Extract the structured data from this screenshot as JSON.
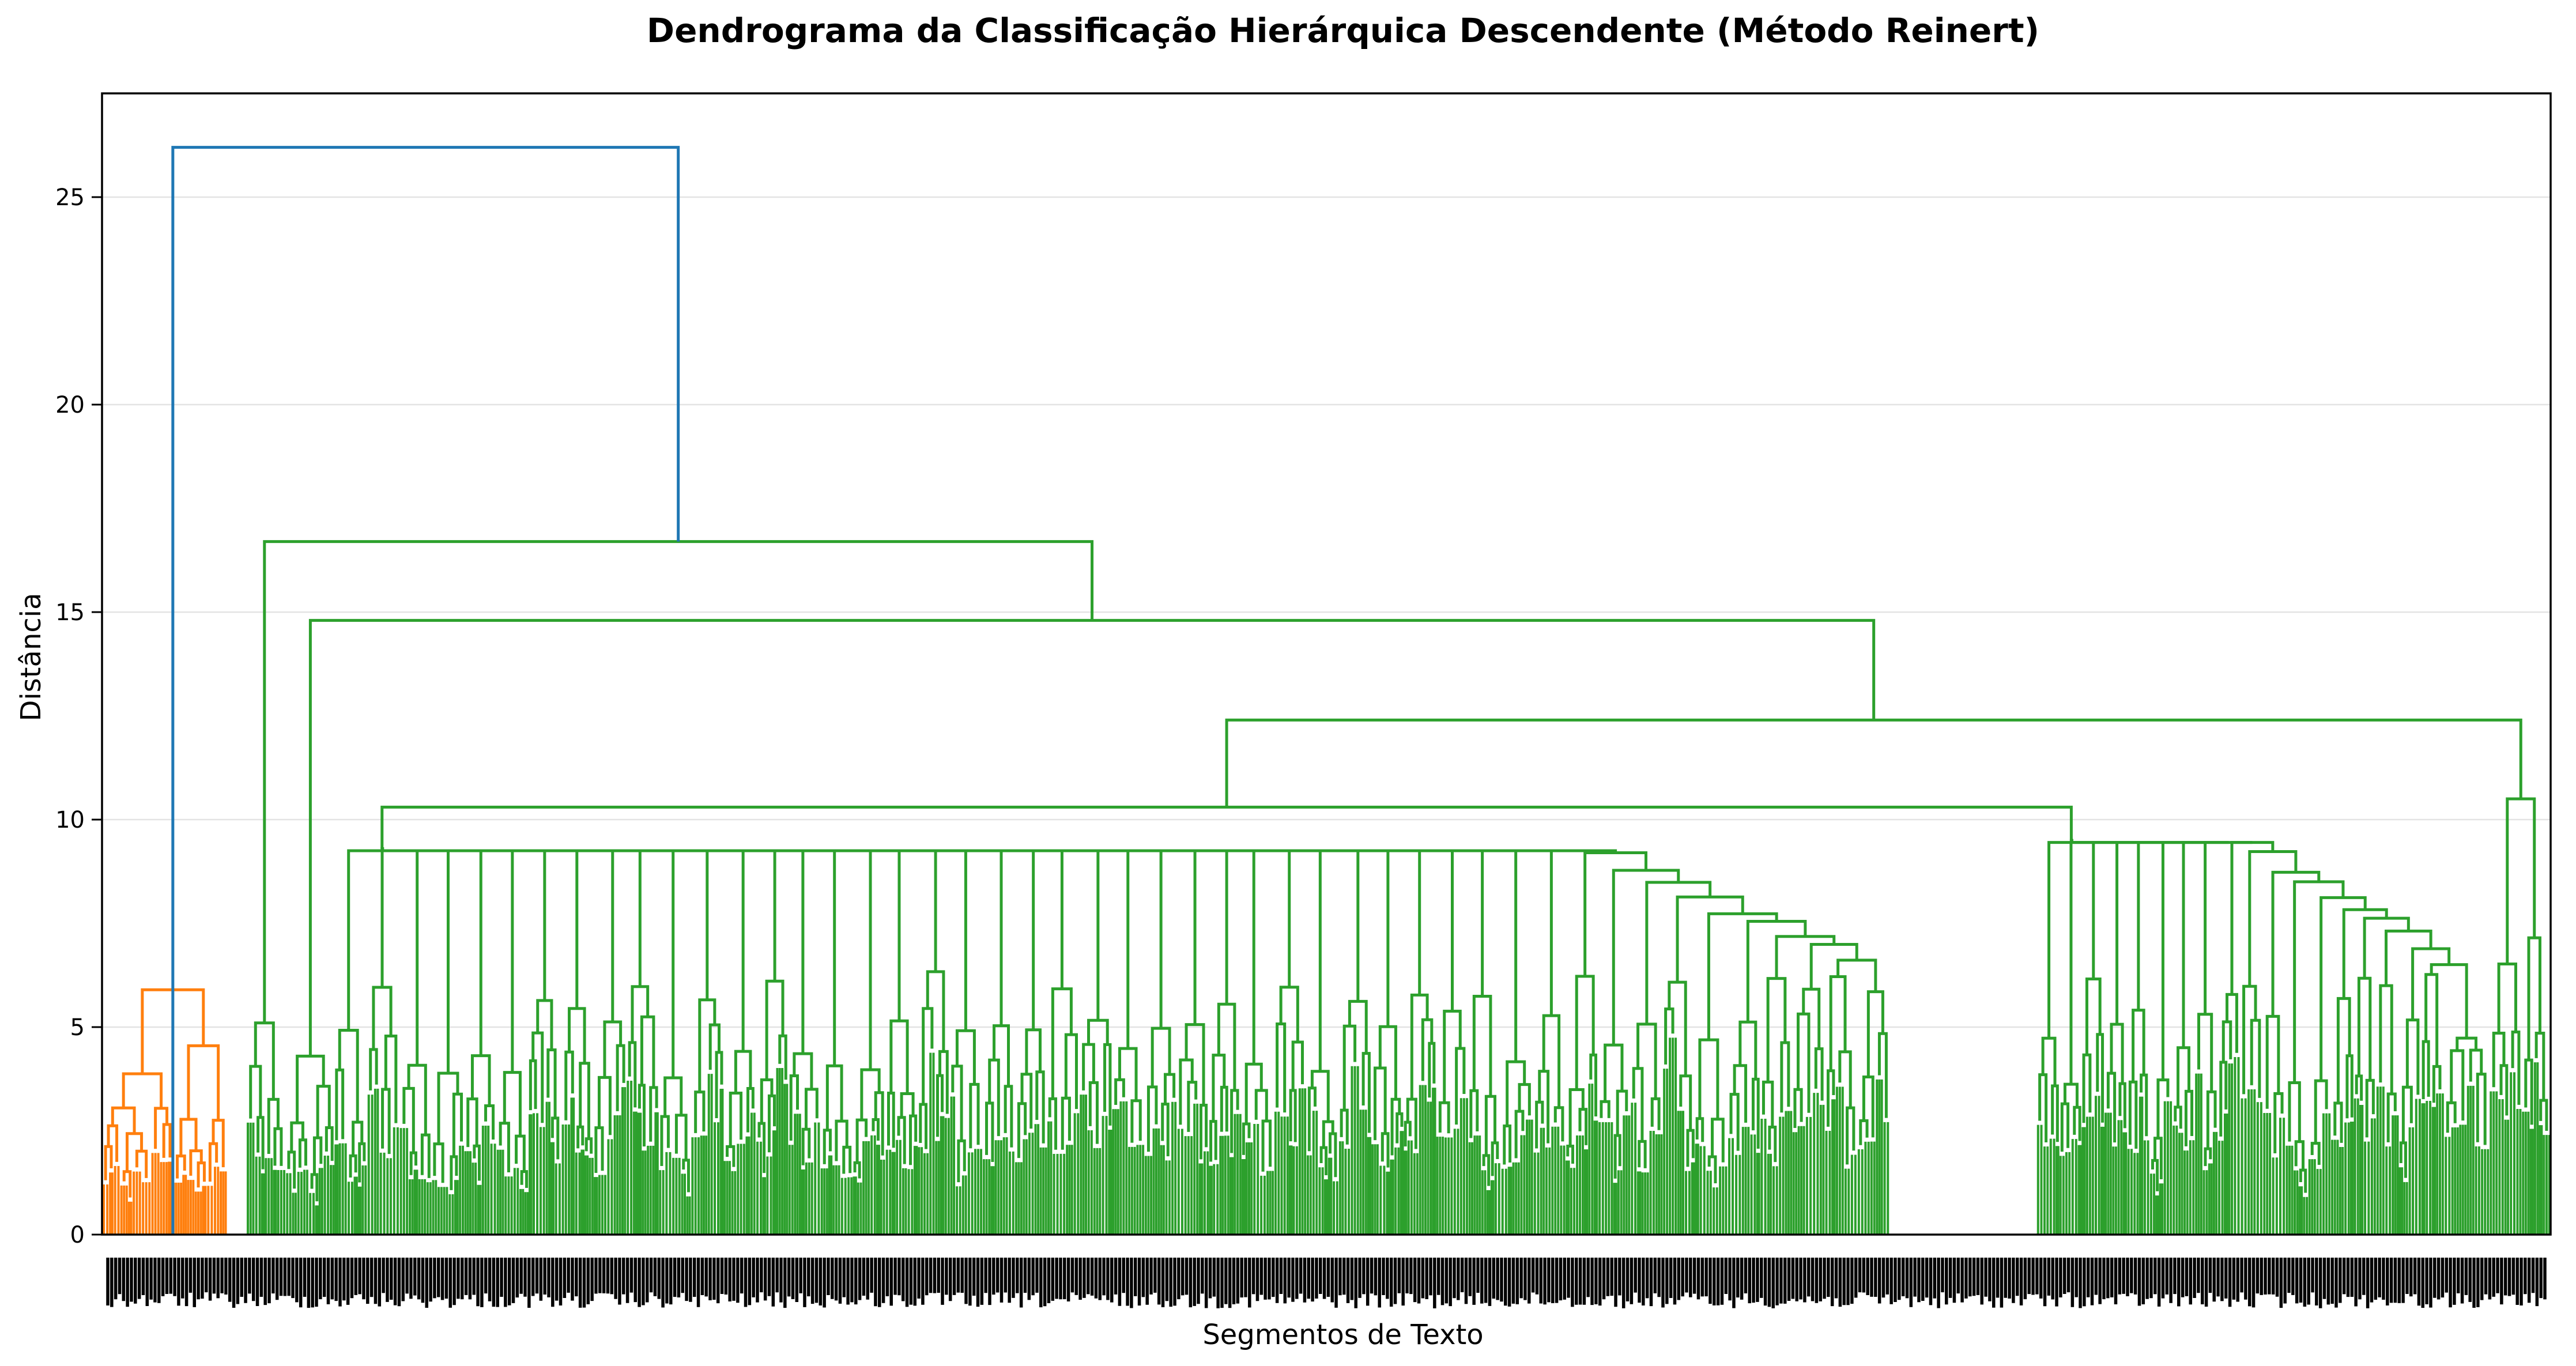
{
  "chart_data": {
    "type": "dendrogram",
    "title": "Dendrograma da Classificação Hierárquica Descendente (Método Reinert)",
    "xlabel": "Segmentos de Texto",
    "ylabel": "Distância",
    "ylim": [
      0,
      27.5
    ],
    "yticks": [
      0,
      5,
      10,
      15,
      20,
      25
    ],
    "grid": "horizontal",
    "x_tick_labels": "dense, illegible leaf labels",
    "colors": {
      "root": "#1f77b4",
      "cluster_1": "#ff7f0e",
      "cluster_2": "#2ca02c",
      "axis": "#000000",
      "grid": "#e3e3e3"
    },
    "merges": [
      {
        "id": "root",
        "height": 26.2,
        "children": [
          "orange",
          "g1"
        ],
        "color": "#1f77b4"
      },
      {
        "id": "orange",
        "height": 5.9,
        "leaf_range": [
          0,
          0.051
        ],
        "color": "#ff7f0e"
      },
      {
        "id": "g1",
        "height": 16.7,
        "children": [
          "g1a",
          "g2"
        ],
        "color": "#2ca02c"
      },
      {
        "id": "g1a",
        "height": 5.1,
        "leaf_range": [
          0.059,
          0.075
        ],
        "color": "#2ca02c"
      },
      {
        "id": "g2",
        "height": 14.8,
        "children": [
          "g2a",
          "g3"
        ],
        "color": "#2ca02c"
      },
      {
        "id": "g2a",
        "height": 4.3,
        "leaf_range": [
          0.075,
          0.095
        ],
        "color": "#2ca02c"
      },
      {
        "id": "g3",
        "height": 12.4,
        "children": [
          "g4",
          "g5"
        ],
        "color": "#2ca02c"
      },
      {
        "id": "g4",
        "height": 10.3,
        "children": [
          "g4a",
          "g4b"
        ],
        "color": "#2ca02c"
      },
      {
        "id": "g4a",
        "height": 9.3,
        "leaf_range": [
          0.095,
          0.73
        ],
        "color": "#2ca02c"
      },
      {
        "id": "g4b",
        "height": 9.5,
        "leaf_range": [
          0.79,
          0.975
        ],
        "color": "#2ca02c"
      },
      {
        "id": "g5",
        "height": 10.5,
        "leaf_range": [
          0.975,
          1.0
        ],
        "color": "#2ca02c"
      }
    ]
  }
}
